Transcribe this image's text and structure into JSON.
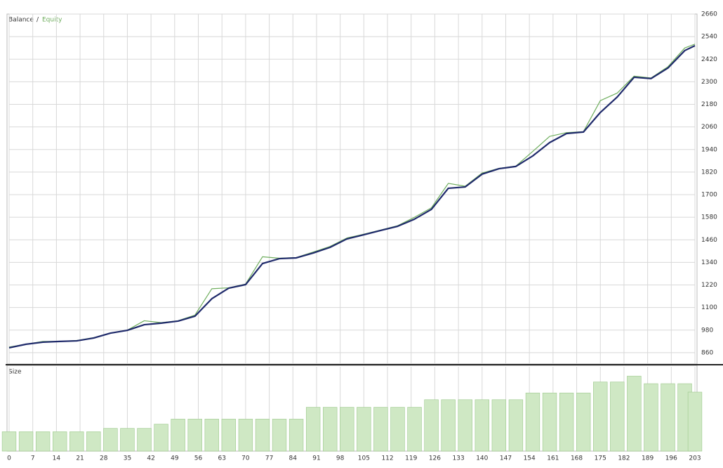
{
  "chart_data": {
    "type": "line",
    "legend_separator": "/",
    "x": [
      0,
      5,
      10,
      15,
      20,
      25,
      30,
      35,
      40,
      45,
      50,
      55,
      60,
      65,
      70,
      75,
      80,
      85,
      90,
      95,
      100,
      105,
      110,
      115,
      120,
      125,
      130,
      135,
      140,
      145,
      150,
      155,
      160,
      165,
      170,
      175,
      180,
      185,
      190,
      195,
      200,
      203
    ],
    "series": [
      {
        "name": "Balance",
        "color": "#1f2a6b",
        "values": [
          886,
          905,
          916,
          920,
          923,
          938,
          964,
          979,
          1009,
          1017,
          1028,
          1054,
          1147,
          1203,
          1222,
          1334,
          1360,
          1364,
          1390,
          1420,
          1465,
          1487,
          1510,
          1532,
          1570,
          1622,
          1734,
          1741,
          1809,
          1838,
          1850,
          1906,
          1977,
          2025,
          2033,
          2137,
          2219,
          2324,
          2317,
          2373,
          2466,
          2492
        ]
      },
      {
        "name": "Equity",
        "color": "#6fae5e",
        "values": [
          890,
          905,
          920,
          920,
          925,
          940,
          965,
          980,
          1030,
          1020,
          1030,
          1060,
          1200,
          1205,
          1225,
          1370,
          1362,
          1366,
          1395,
          1425,
          1470,
          1490,
          1512,
          1535,
          1580,
          1630,
          1760,
          1745,
          1815,
          1840,
          1852,
          1930,
          2010,
          2030,
          2035,
          2200,
          2240,
          2330,
          2320,
          2380,
          2480,
          2500
        ]
      }
    ],
    "xlim": [
      0,
      203
    ],
    "xticks": [
      0,
      7,
      14,
      21,
      28,
      35,
      42,
      49,
      56,
      63,
      70,
      77,
      84,
      91,
      98,
      105,
      112,
      119,
      126,
      133,
      140,
      147,
      154,
      161,
      168,
      175,
      182,
      189,
      196,
      203
    ],
    "ylim": [
      800,
      2660
    ],
    "yticks": [
      860,
      980,
      1100,
      1220,
      1340,
      1460,
      1580,
      1700,
      1820,
      1940,
      2060,
      2180,
      2300,
      2420,
      2540,
      2660
    ],
    "grid": true,
    "size": {
      "name": "Size",
      "color": "#cfe8c4",
      "values": [
        0.23,
        0.23,
        0.23,
        0.23,
        0.23,
        0.23,
        0.27,
        0.27,
        0.27,
        0.32,
        0.38,
        0.38,
        0.38,
        0.38,
        0.38,
        0.38,
        0.38,
        0.38,
        0.52,
        0.52,
        0.52,
        0.52,
        0.52,
        0.52,
        0.52,
        0.61,
        0.61,
        0.61,
        0.61,
        0.61,
        0.61,
        0.69,
        0.69,
        0.69,
        0.69,
        0.82,
        0.82,
        0.89,
        0.8,
        0.8,
        0.8,
        0.7
      ],
      "ylim": [
        0,
        1
      ]
    }
  }
}
